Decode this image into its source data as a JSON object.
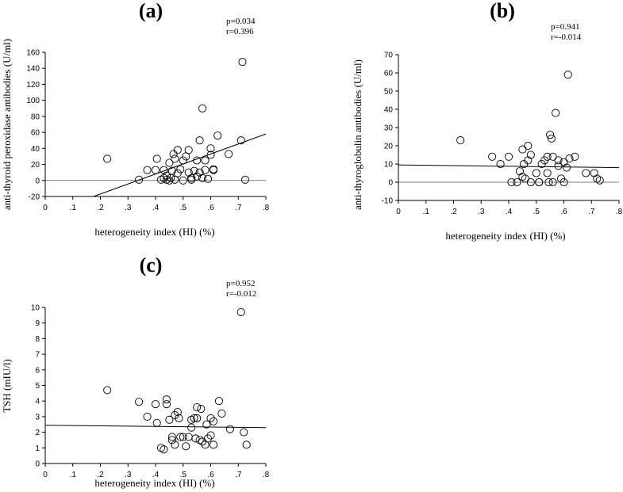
{
  "chart_data": [
    {
      "type": "scatter",
      "panel_label": "(a)",
      "stats": [
        "p=0.034",
        "r=0.396"
      ],
      "xlabel": "heterogeneity index (HI) (%)",
      "ylabel": "anti-thyroid peroxidase antibodies (U/ml)",
      "xlim": [
        0,
        0.8
      ],
      "ylim": [
        -20,
        160
      ],
      "xticks": [
        0,
        0.1,
        0.2,
        0.3,
        0.4,
        0.5,
        0.6,
        0.7,
        0.8
      ],
      "xtick_labels": [
        "0",
        ".1",
        ".2",
        ".3",
        ".4",
        ".5",
        ".6",
        ".7",
        ".8"
      ],
      "yticks": [
        -20,
        0,
        20,
        40,
        60,
        80,
        100,
        120,
        140,
        160
      ],
      "ytick_labels": [
        "-20",
        "0",
        "20",
        "40",
        "60",
        "80",
        "100",
        "120",
        "140",
        "160"
      ],
      "reference_line_y": 0,
      "fit_line": {
        "x": [
          0.175,
          0.8
        ],
        "y": [
          -20,
          58
        ]
      },
      "points": [
        [
          0.225,
          27
        ],
        [
          0.34,
          1
        ],
        [
          0.37,
          13
        ],
        [
          0.4,
          13
        ],
        [
          0.405,
          27
        ],
        [
          0.42,
          1
        ],
        [
          0.43,
          3
        ],
        [
          0.43,
          13
        ],
        [
          0.44,
          1
        ],
        [
          0.44,
          6
        ],
        [
          0.45,
          22
        ],
        [
          0.45,
          0
        ],
        [
          0.455,
          3
        ],
        [
          0.46,
          12
        ],
        [
          0.465,
          33
        ],
        [
          0.47,
          27
        ],
        [
          0.47,
          1
        ],
        [
          0.48,
          38
        ],
        [
          0.48,
          9
        ],
        [
          0.49,
          14
        ],
        [
          0.5,
          25
        ],
        [
          0.5,
          0
        ],
        [
          0.51,
          30
        ],
        [
          0.52,
          38
        ],
        [
          0.52,
          10
        ],
        [
          0.53,
          3
        ],
        [
          0.53,
          1
        ],
        [
          0.54,
          12
        ],
        [
          0.55,
          25
        ],
        [
          0.55,
          5
        ],
        [
          0.56,
          50
        ],
        [
          0.56,
          10
        ],
        [
          0.57,
          90
        ],
        [
          0.57,
          3
        ],
        [
          0.58,
          25
        ],
        [
          0.58,
          13
        ],
        [
          0.59,
          2
        ],
        [
          0.6,
          32
        ],
        [
          0.6,
          40
        ],
        [
          0.61,
          14
        ],
        [
          0.61,
          13
        ],
        [
          0.625,
          56
        ],
        [
          0.665,
          33
        ],
        [
          0.71,
          50
        ],
        [
          0.715,
          148
        ],
        [
          0.725,
          1
        ]
      ]
    },
    {
      "type": "scatter",
      "panel_label": "(b)",
      "stats": [
        "p=0.941",
        "r=-0.014"
      ],
      "xlabel": "heterogeneity index (HI) (%)",
      "ylabel": "anti-thyroglobulin antibodies (U/ml)",
      "xlim": [
        0,
        0.8
      ],
      "ylim": [
        -10,
        70
      ],
      "xticks": [
        0,
        0.1,
        0.2,
        0.3,
        0.4,
        0.5,
        0.6,
        0.7,
        0.8
      ],
      "xtick_labels": [
        "0",
        ".1",
        ".2",
        ".3",
        ".4",
        ".5",
        ".6",
        ".7",
        ".8"
      ],
      "yticks": [
        -10,
        0,
        10,
        20,
        30,
        40,
        50,
        60,
        70
      ],
      "ytick_labels": [
        "-10",
        "0",
        "10",
        "20",
        "30",
        "40",
        "50",
        "60",
        "70"
      ],
      "reference_line_y": 0,
      "fit_line": {
        "x": [
          0,
          0.8
        ],
        "y": [
          9.5,
          8
        ]
      },
      "points": [
        [
          0.225,
          23
        ],
        [
          0.34,
          14
        ],
        [
          0.37,
          10
        ],
        [
          0.4,
          14
        ],
        [
          0.41,
          0
        ],
        [
          0.43,
          0
        ],
        [
          0.44,
          6
        ],
        [
          0.45,
          3
        ],
        [
          0.45,
          18
        ],
        [
          0.455,
          10
        ],
        [
          0.46,
          2
        ],
        [
          0.47,
          12
        ],
        [
          0.47,
          20
        ],
        [
          0.48,
          15
        ],
        [
          0.48,
          0
        ],
        [
          0.5,
          5
        ],
        [
          0.51,
          0
        ],
        [
          0.51,
          0
        ],
        [
          0.52,
          10
        ],
        [
          0.53,
          12
        ],
        [
          0.54,
          5
        ],
        [
          0.54,
          14
        ],
        [
          0.545,
          0
        ],
        [
          0.55,
          26
        ],
        [
          0.555,
          24
        ],
        [
          0.56,
          14
        ],
        [
          0.56,
          0
        ],
        [
          0.57,
          38
        ],
        [
          0.58,
          12
        ],
        [
          0.58,
          9
        ],
        [
          0.59,
          2
        ],
        [
          0.6,
          11
        ],
        [
          0.6,
          0
        ],
        [
          0.61,
          8
        ],
        [
          0.615,
          59
        ],
        [
          0.62,
          13
        ],
        [
          0.64,
          14
        ],
        [
          0.68,
          5
        ],
        [
          0.71,
          5
        ],
        [
          0.72,
          2
        ],
        [
          0.73,
          1
        ]
      ]
    },
    {
      "type": "scatter",
      "panel_label": "(c)",
      "stats": [
        "p=0.952",
        "r=-0.012"
      ],
      "xlabel": "heterogeneity index (HI) (%)",
      "ylabel": "TSH (mIU/l)",
      "xlim": [
        0,
        0.8
      ],
      "ylim": [
        0,
        10
      ],
      "xticks": [
        0,
        0.1,
        0.2,
        0.3,
        0.4,
        0.5,
        0.6,
        0.7,
        0.8
      ],
      "xtick_labels": [
        "0",
        ".1",
        ".2",
        ".3",
        ".4",
        ".5",
        ".6",
        ".7",
        ".8"
      ],
      "yticks": [
        0,
        1,
        2,
        3,
        4,
        5,
        6,
        7,
        8,
        9,
        10
      ],
      "ytick_labels": [
        "0",
        "1",
        "2",
        "3",
        "4",
        "5",
        "6",
        "7",
        "8",
        "9",
        "10"
      ],
      "fit_line": {
        "x": [
          0,
          0.8
        ],
        "y": [
          2.45,
          2.3
        ]
      },
      "points": [
        [
          0.225,
          4.7
        ],
        [
          0.34,
          3.95
        ],
        [
          0.37,
          3.0
        ],
        [
          0.4,
          3.8
        ],
        [
          0.405,
          2.6
        ],
        [
          0.42,
          1.0
        ],
        [
          0.43,
          0.9
        ],
        [
          0.44,
          3.8
        ],
        [
          0.44,
          4.1
        ],
        [
          0.45,
          2.8
        ],
        [
          0.46,
          1.7
        ],
        [
          0.46,
          1.5
        ],
        [
          0.47,
          3.1
        ],
        [
          0.47,
          1.2
        ],
        [
          0.48,
          3.3
        ],
        [
          0.485,
          2.9
        ],
        [
          0.49,
          1.7
        ],
        [
          0.5,
          1.7
        ],
        [
          0.51,
          1.1
        ],
        [
          0.52,
          1.7
        ],
        [
          0.53,
          2.8
        ],
        [
          0.53,
          2.3
        ],
        [
          0.54,
          2.9
        ],
        [
          0.545,
          1.6
        ],
        [
          0.55,
          2.9
        ],
        [
          0.55,
          3.6
        ],
        [
          0.56,
          1.5
        ],
        [
          0.565,
          3.5
        ],
        [
          0.57,
          1.4
        ],
        [
          0.58,
          1.2
        ],
        [
          0.585,
          2.5
        ],
        [
          0.59,
          1.6
        ],
        [
          0.6,
          1.8
        ],
        [
          0.6,
          2.9
        ],
        [
          0.61,
          2.7
        ],
        [
          0.61,
          1.2
        ],
        [
          0.63,
          4.0
        ],
        [
          0.64,
          3.2
        ],
        [
          0.67,
          2.2
        ],
        [
          0.71,
          9.7
        ],
        [
          0.72,
          2.0
        ],
        [
          0.73,
          1.2
        ]
      ]
    }
  ]
}
